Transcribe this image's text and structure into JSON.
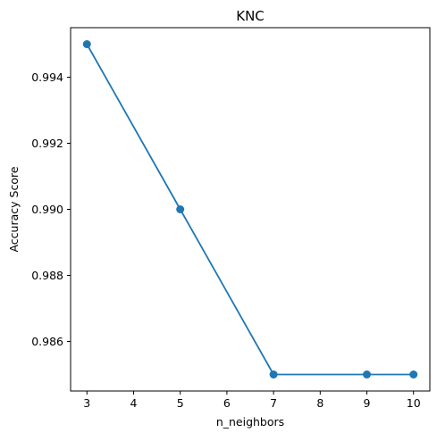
{
  "chart_data": {
    "type": "line",
    "title": "KNC",
    "xlabel": "n_neighbors",
    "ylabel": "Accuracy Score",
    "x": [
      3,
      5,
      7,
      9,
      10
    ],
    "series": [
      {
        "values": [
          0.995,
          0.99,
          0.985,
          0.985,
          0.985
        ],
        "color": "#1f77b4",
        "marker": "circle"
      }
    ],
    "xlim": [
      2.65,
      10.35
    ],
    "ylim": [
      0.9845,
      0.9955
    ],
    "xticks": [
      3,
      4,
      5,
      6,
      7,
      8,
      9,
      10
    ],
    "xtick_labels": [
      "3",
      "4",
      "5",
      "6",
      "7",
      "8",
      "9",
      "10"
    ],
    "yticks": [
      0.986,
      0.988,
      0.99,
      0.992,
      0.994
    ],
    "ytick_labels": [
      "0.986",
      "0.988",
      "0.990",
      "0.992",
      "0.994"
    ],
    "grid": false,
    "legend": false
  }
}
